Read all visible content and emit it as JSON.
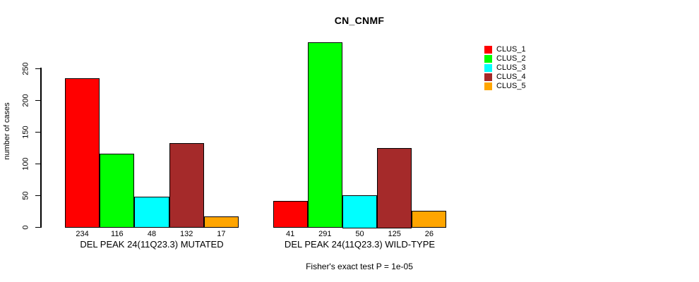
{
  "chart_data": {
    "type": "bar",
    "title": "CN_CNMF",
    "ylabel": "number of cases",
    "xlabel": "",
    "ylim": [
      0,
      250
    ],
    "yticks": [
      0,
      50,
      100,
      150,
      200,
      250
    ],
    "grid": false,
    "legend_position": "right",
    "series": [
      "CLUS_1",
      "CLUS_2",
      "CLUS_3",
      "CLUS_4",
      "CLUS_5"
    ],
    "series_colors": [
      "#FF0000",
      "#00FF00",
      "#00FFFF",
      "#A52A2A",
      "#FFA500"
    ],
    "groups": [
      {
        "label": "DEL PEAK 24(11Q23.3) MUTATED",
        "values": [
          234,
          116,
          48,
          132,
          17
        ]
      },
      {
        "label": "DEL PEAK 24(11Q23.3) WILD-TYPE",
        "values": [
          41,
          291,
          50,
          125,
          26
        ]
      }
    ],
    "bar_value_labels_shown": true,
    "annotation": "Fisher's exact test P = 1e-05"
  }
}
